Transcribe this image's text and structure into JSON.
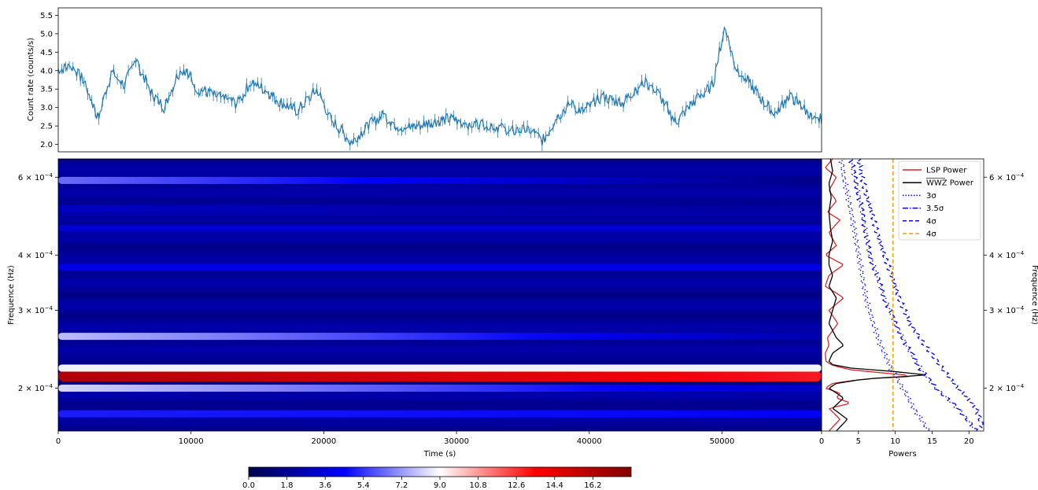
{
  "chart_data": [
    {
      "type": "line",
      "panel": "light-curve",
      "ylabel": "Count rate (counts/s)",
      "ylim": [
        1.8,
        5.7
      ],
      "xlim": [
        0,
        57500
      ],
      "yticks": [
        2.0,
        2.5,
        3.0,
        3.5,
        4.0,
        4.5,
        5.0,
        5.5
      ],
      "ytick_labels": [
        "2.0",
        "2.5",
        "3.0",
        "3.5",
        "4.0",
        "4.5",
        "5.0",
        "5.5"
      ],
      "error_bars": true,
      "color": "#1f77b4",
      "series": [
        {
          "x": [
            0,
            1000,
            2000,
            3000,
            4000,
            5000,
            5800,
            7000,
            8000,
            9000,
            9500,
            10500,
            12000,
            13500,
            14500,
            15500,
            16500,
            18000,
            19500,
            20500,
            21500,
            22000,
            23500,
            24500,
            25500,
            26500,
            28000,
            29500,
            31000,
            32500,
            34000,
            35500,
            36500,
            37500,
            38500,
            39500,
            41000,
            42500,
            44000,
            45000,
            46500,
            48000,
            49300,
            50200,
            51000,
            52000,
            53000,
            54000,
            55000,
            56000,
            57000,
            57500
          ],
          "y": [
            4.05,
            4.1,
            3.7,
            2.7,
            3.95,
            3.6,
            4.35,
            3.4,
            3.0,
            3.9,
            4.05,
            3.5,
            3.3,
            3.1,
            3.7,
            3.5,
            3.2,
            2.9,
            3.5,
            2.7,
            2.3,
            2.05,
            2.55,
            2.8,
            2.5,
            2.45,
            2.6,
            2.7,
            2.55,
            2.55,
            2.35,
            2.4,
            2.1,
            2.7,
            3.1,
            2.9,
            3.3,
            3.1,
            3.7,
            3.5,
            2.6,
            3.2,
            3.6,
            5.2,
            4.1,
            3.7,
            3.2,
            2.85,
            3.3,
            3.05,
            2.6,
            2.7
          ]
        }
      ]
    },
    {
      "type": "heatmap",
      "panel": "wwz-map",
      "xlabel": "Time (s)",
      "ylabel": "Frequence (Hz)",
      "xlim": [
        0,
        57500
      ],
      "xticks": [
        0,
        10000,
        20000,
        30000,
        40000,
        50000
      ],
      "xtick_labels": [
        "0",
        "10000",
        "20000",
        "30000",
        "40000",
        "50000"
      ],
      "yscale": "log",
      "ylim": [
        0.00016,
        0.00066
      ],
      "yticks": [
        0.0002,
        0.0003,
        0.0004,
        0.0006
      ],
      "ytick_labels": [
        "2 × 10⁻⁴",
        "3 × 10⁻⁴",
        "4 × 10⁻⁴",
        "6 × 10⁻⁴"
      ],
      "colormap": "seismic",
      "bands": [
        {
          "freq": 0.000213,
          "power_start": 16.0,
          "power_end": 13.0
        },
        {
          "freq": 0.000222,
          "power_start": 9.0,
          "power_end": 9.0
        },
        {
          "freq": 0.0002,
          "power_start": 8.5,
          "power_end": 3.0
        },
        {
          "freq": 0.000262,
          "power_start": 8.0,
          "power_end": 2.5
        },
        {
          "freq": 0.00059,
          "power_start": 6.5,
          "power_end": 1.5
        },
        {
          "freq": 0.000175,
          "power_start": 5.0,
          "power_end": 4.5
        },
        {
          "freq": 0.000375,
          "power_start": 4.0,
          "power_end": 4.0
        },
        {
          "freq": 0.00046,
          "power_start": 3.5,
          "power_end": 3.5
        },
        {
          "freq": 0.00051,
          "power_start": 3.0,
          "power_end": 2.0
        }
      ]
    },
    {
      "type": "line",
      "panel": "power-spectrum",
      "xlabel": "Powers",
      "ylabel": "Frequence (Hz)",
      "xlim": [
        0,
        22
      ],
      "xticks": [
        0,
        5,
        10,
        15,
        20
      ],
      "xtick_labels": [
        "0",
        "5",
        "10",
        "15",
        "20"
      ],
      "yscale": "log",
      "ylim": [
        0.00016,
        0.00066
      ],
      "legend_position": "top-right",
      "series": [
        {
          "name": "LSP Power",
          "color": "#d62728",
          "style": "solid",
          "freq": [
            0.00016,
            0.00017,
            0.00018,
            0.000185,
            0.00019,
            0.000195,
            0.0002,
            0.000205,
            0.00021,
            0.000213,
            0.000216,
            0.00022,
            0.000225,
            0.00023,
            0.00024,
            0.00025,
            0.00026,
            0.00027,
            0.00028,
            0.0003,
            0.00032,
            0.00034,
            0.00036,
            0.00038,
            0.0004,
            0.00042,
            0.00045,
            0.00048,
            0.0005,
            0.00053,
            0.00056,
            0.0006,
            0.00063,
            0.00066
          ],
          "power": [
            1.0,
            2.5,
            1.0,
            4.0,
            2.0,
            2.5,
            0.5,
            1.5,
            6.0,
            13.0,
            9.0,
            4.0,
            1.5,
            0.6,
            0.5,
            1.0,
            0.8,
            1.5,
            2.2,
            1.0,
            3.0,
            0.5,
            1.0,
            3.0,
            0.5,
            2.0,
            1.0,
            2.5,
            0.8,
            2.0,
            1.0,
            2.0,
            0.5,
            1.5
          ]
        },
        {
          "name": "WWZ Power",
          "color": "#000000",
          "style": "solid",
          "freq": [
            0.00016,
            0.00017,
            0.00018,
            0.00019,
            0.0002,
            0.000205,
            0.00021,
            0.000214,
            0.000218,
            0.000222,
            0.000226,
            0.00023,
            0.00024,
            0.00025,
            0.00026,
            0.00028,
            0.0003,
            0.00032,
            0.00034,
            0.00036,
            0.00038,
            0.0004,
            0.00043,
            0.00046,
            0.0005,
            0.00054,
            0.00058,
            0.00062,
            0.00066
          ],
          "power": [
            2.0,
            3.5,
            1.5,
            3.0,
            1.0,
            2.0,
            6.0,
            14.5,
            10.0,
            4.0,
            1.5,
            1.0,
            1.5,
            3.0,
            2.0,
            1.0,
            1.5,
            2.0,
            1.0,
            1.5,
            1.0,
            1.0,
            1.5,
            1.2,
            1.0,
            1.3,
            1.0,
            1.5,
            1.2
          ]
        },
        {
          "name": "3σ",
          "color": "#0000ff",
          "style": "dotted",
          "freq": [
            0.00016,
            0.00018,
            0.0002,
            0.00022,
            0.00025,
            0.00028,
            0.00032,
            0.00036,
            0.0004,
            0.00045,
            0.0005,
            0.00055,
            0.0006,
            0.00066
          ],
          "power": [
            14.5,
            12.5,
            11.0,
            9.5,
            8.0,
            7.0,
            6.0,
            5.5,
            5.0,
            4.5,
            4.0,
            3.5,
            3.0,
            2.7
          ]
        },
        {
          "name": "3.5σ",
          "color": "#0000ff",
          "style": "dashdot",
          "freq": [
            0.00016,
            0.00018,
            0.0002,
            0.00022,
            0.00025,
            0.00028,
            0.00032,
            0.00036,
            0.0004,
            0.00045,
            0.0005,
            0.00055,
            0.0006,
            0.00066
          ],
          "power": [
            21.0,
            18.5,
            15.5,
            13.5,
            11.5,
            10.0,
            8.5,
            7.5,
            6.5,
            6.0,
            5.5,
            5.0,
            4.5,
            4.0
          ]
        },
        {
          "name": "4σ",
          "color": "#0000ff",
          "style": "dashed",
          "freq": [
            0.00016,
            0.00018,
            0.0002,
            0.00022,
            0.00025,
            0.00028,
            0.00032,
            0.00036,
            0.0004,
            0.00045,
            0.0005,
            0.00055,
            0.0006,
            0.00066
          ],
          "power": [
            22.0,
            21.0,
            18.5,
            16.5,
            14.0,
            12.0,
            10.5,
            9.5,
            8.5,
            7.5,
            6.8,
            6.0,
            5.5,
            5.0
          ]
        },
        {
          "name": "4σ",
          "color": "#ff9900",
          "style": "dashed",
          "vertical_at": 9.7
        }
      ]
    },
    {
      "type": "colorbar",
      "panel": "colorbar",
      "colormap": "seismic",
      "range": [
        0,
        18
      ],
      "ticks": [
        0.0,
        1.8,
        3.6,
        5.4,
        7.2,
        9.0,
        10.8,
        12.6,
        14.4,
        16.2
      ],
      "tick_labels": [
        "0.0",
        "1.8",
        "3.6",
        "5.4",
        "7.2",
        "9.0",
        "10.8",
        "12.6",
        "14.4",
        "16.2"
      ]
    }
  ]
}
